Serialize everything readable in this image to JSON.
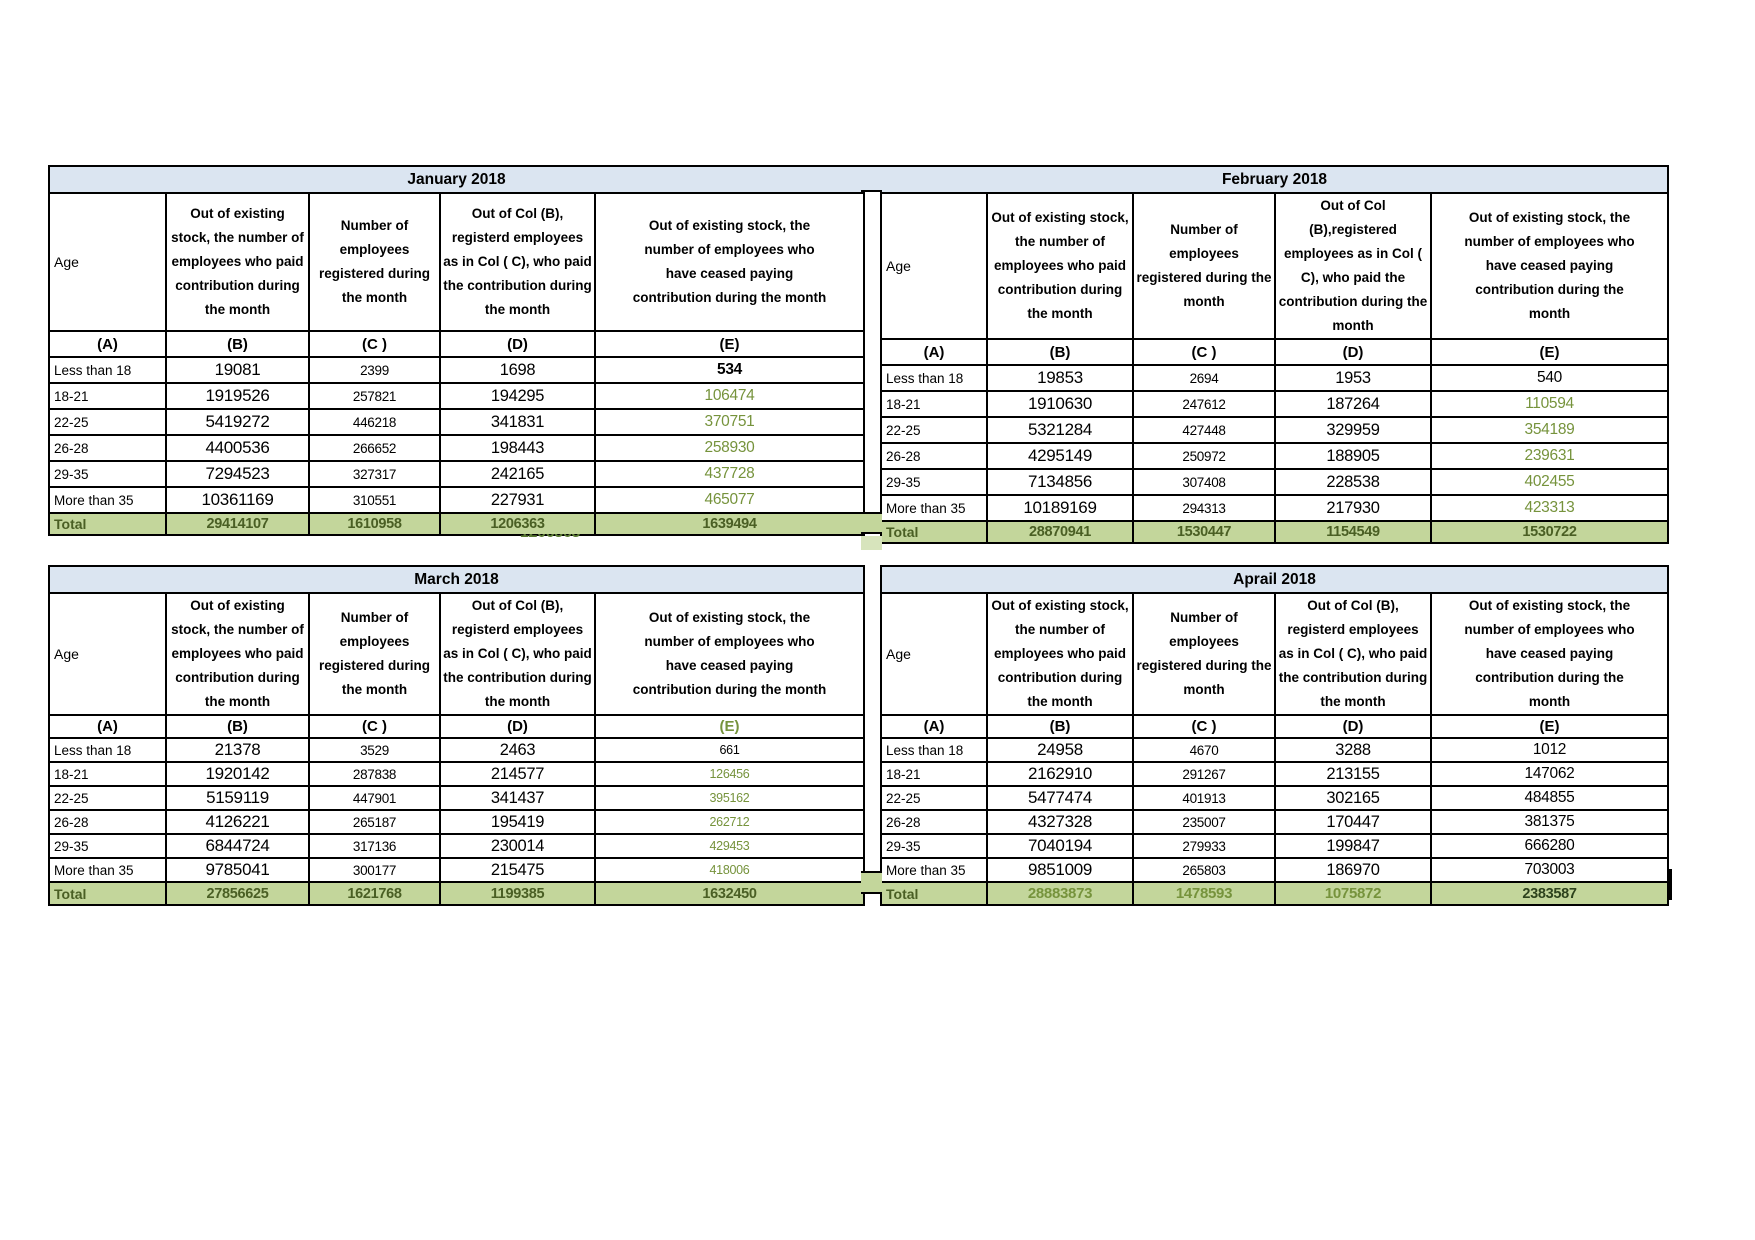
{
  "letters": [
    "(A)",
    "(B)",
    "(C )",
    "(D)",
    "(E)"
  ],
  "age_label": "Age",
  "total_label": "Total",
  "artifacts": {
    "stray_value": "1206363"
  },
  "colors": {
    "title_fill": "#dbe5f1",
    "total_fill": "#c3d69b",
    "artifact_fill": "#d7e4bc",
    "green_value_text": "#76933c",
    "total_text": "#4a5f24",
    "border": "#000000"
  },
  "months": [
    {
      "title": "January 2018",
      "headers": {
        "b": "Out of existing stock, the number of employees who paid contribution during the month",
        "c": "Number of employees registered during the month",
        "d": "Out of Col (B), registerd employees as in Col ( C), who paid the contribution during the month",
        "e": "Out of existing stock, the number of  employees  who have ceased paying contribution during the month"
      },
      "rows": [
        {
          "age": "Less than 18",
          "b": "19081",
          "c": "2399",
          "d": "1698",
          "e": "534"
        },
        {
          "age": "18-21",
          "b": "1919526",
          "c": "257821",
          "d": "194295",
          "e": "106474"
        },
        {
          "age": "22-25",
          "b": "5419272",
          "c": "446218",
          "d": "341831",
          "e": "370751"
        },
        {
          "age": "26-28",
          "b": "4400536",
          "c": "266652",
          "d": "198443",
          "e": "258930"
        },
        {
          "age": "29-35",
          "b": "7294523",
          "c": "327317",
          "d": "242165",
          "e": "437728"
        },
        {
          "age": "More than 35",
          "b": "10361169",
          "c": "310551",
          "d": "227931",
          "e": "465077"
        }
      ],
      "total": {
        "b": "29414107",
        "c": "1610958",
        "d": "1206363",
        "e": "1639494"
      },
      "e_values_color": "green",
      "e_first_bold": true,
      "e_letter_green": false,
      "total_style": "normal"
    },
    {
      "title": "February 2018",
      "headers": {
        "b": "Out of existing stock, the number of employees who paid contribution during the month",
        "c": "Number of employees registered during the month",
        "d": "Out of Col (B),registered employees as in Col ( C), who paid the contribution during the month",
        "e": "Out of existing stock, the number of employees  who have ceased paying contribution during the month"
      },
      "rows": [
        {
          "age": "Less than 18",
          "b": "19853",
          "c": "2694",
          "d": "1953",
          "e": "540"
        },
        {
          "age": "18-21",
          "b": "1910630",
          "c": "247612",
          "d": "187264",
          "e": "110594"
        },
        {
          "age": "22-25",
          "b": "5321284",
          "c": "427448",
          "d": "329959",
          "e": "354189"
        },
        {
          "age": "26-28",
          "b": "4295149",
          "c": "250972",
          "d": "188905",
          "e": "239631"
        },
        {
          "age": "29-35",
          "b": "7134856",
          "c": "307408",
          "d": "228538",
          "e": "402455"
        },
        {
          "age": "More than 35",
          "b": "10189169",
          "c": "294313",
          "d": "217930",
          "e": "423313"
        }
      ],
      "total": {
        "b": "28870941",
        "c": "1530447",
        "d": "1154549",
        "e": "1530722"
      },
      "e_values_color": "green",
      "e_first_bold": false,
      "e_letter_green": false,
      "total_style": "normal"
    },
    {
      "title": "March 2018",
      "headers": {
        "b": "Out of existing stock, the number of employees who paid contribution during the month",
        "c": "Number of employees registered during the month",
        "d": "Out of Col (B), registerd employees as in Col ( C), who paid the contribution during the month",
        "e": "Out of existing stock, the number of  employees  who have ceased paying contribution during the month"
      },
      "rows": [
        {
          "age": "Less than 18",
          "b": "21378",
          "c": "3529",
          "d": "2463",
          "e": "661"
        },
        {
          "age": "18-21",
          "b": "1920142",
          "c": "287838",
          "d": "214577",
          "e": "126456"
        },
        {
          "age": "22-25",
          "b": "5159119",
          "c": "447901",
          "d": "341437",
          "e": "395162"
        },
        {
          "age": "26-28",
          "b": "4126221",
          "c": "265187",
          "d": "195419",
          "e": "262712"
        },
        {
          "age": "29-35",
          "b": "6844724",
          "c": "317136",
          "d": "230014",
          "e": "429453"
        },
        {
          "age": "More than 35",
          "b": "9785041",
          "c": "300177",
          "d": "215475",
          "e": "418006"
        }
      ],
      "total": {
        "b": "27856625",
        "c": "1621768",
        "d": "1199385",
        "e": "1632450"
      },
      "e_values_color": "green",
      "e_first_bold": false,
      "e_letter_green": true,
      "total_style": "normal"
    },
    {
      "title": "Aprail 2018",
      "headers": {
        "b": "Out of existing stock, the number of employees who paid contribution during the month",
        "c": "Number of employees registered during the month",
        "d": "Out of Col (B), registerd employees as in Col ( C), who paid the contribution during the month",
        "e": "Out of existing stock, the number of employees  who have ceased paying contribution during the month"
      },
      "rows": [
        {
          "age": "Less than 18",
          "b": "24958",
          "c": "4670",
          "d": "3288",
          "e": "1012"
        },
        {
          "age": "18-21",
          "b": "2162910",
          "c": "291267",
          "d": "213155",
          "e": "147062"
        },
        {
          "age": "22-25",
          "b": "5477474",
          "c": "401913",
          "d": "302165",
          "e": "484855"
        },
        {
          "age": "26-28",
          "b": "4327328",
          "c": "235007",
          "d": "170447",
          "e": "381375"
        },
        {
          "age": "29-35",
          "b": "7040194",
          "c": "279933",
          "d": "199847",
          "e": "666280"
        },
        {
          "age": "More than 35",
          "b": "9851009",
          "c": "265803",
          "d": "186970",
          "e": "703003"
        }
      ],
      "total": {
        "b": "28883873",
        "c": "1478593",
        "d": "1075872",
        "e": "2383587"
      },
      "e_values_color": "black",
      "e_first_bold": false,
      "e_letter_green": false,
      "total_style": "april"
    }
  ]
}
